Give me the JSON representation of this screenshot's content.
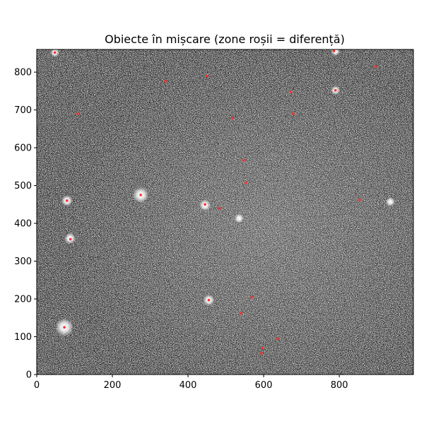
{
  "chart_data": {
    "type": "image",
    "title": "Obiecte în mișcare (zone roșii = diferență)",
    "xlabel": "",
    "ylabel": "",
    "xlim": [
      0,
      996
    ],
    "ylim": [
      0,
      860
    ],
    "x_ticks": [
      "0",
      "200",
      "400",
      "600",
      "800"
    ],
    "y_ticks": [
      "0",
      "100",
      "200",
      "300",
      "400",
      "500",
      "600",
      "700",
      "800"
    ],
    "x_tick_values": [
      0,
      200,
      400,
      600,
      800
    ],
    "y_tick_values": [
      0,
      100,
      200,
      300,
      400,
      500,
      600,
      700,
      800
    ],
    "background": "grayscale star field",
    "colors": {
      "highlight": "#ff3030",
      "axes": "#000000",
      "image_dark": "#3a3a3a"
    },
    "bright_stars": [
      {
        "x": 275,
        "y": 475,
        "r": 7
      },
      {
        "x": 73,
        "y": 125,
        "r": 8
      },
      {
        "x": 88,
        "y": 360,
        "r": 5
      },
      {
        "x": 80,
        "y": 460,
        "r": 5
      },
      {
        "x": 455,
        "y": 197,
        "r": 5
      },
      {
        "x": 445,
        "y": 448,
        "r": 5
      },
      {
        "x": 535,
        "y": 413,
        "r": 4
      },
      {
        "x": 790,
        "y": 752,
        "r": 4
      },
      {
        "x": 790,
        "y": 855,
        "r": 4
      },
      {
        "x": 48,
        "y": 852,
        "r": 4
      },
      {
        "x": 935,
        "y": 457,
        "r": 4
      }
    ],
    "red_markers": [
      {
        "x": 275,
        "y": 475
      },
      {
        "x": 73,
        "y": 125
      },
      {
        "x": 89,
        "y": 358
      },
      {
        "x": 80,
        "y": 460
      },
      {
        "x": 455,
        "y": 197
      },
      {
        "x": 445,
        "y": 450
      },
      {
        "x": 48,
        "y": 852
      },
      {
        "x": 786,
        "y": 856
      },
      {
        "x": 790,
        "y": 752
      },
      {
        "x": 853,
        "y": 462
      },
      {
        "x": 672,
        "y": 748
      },
      {
        "x": 678,
        "y": 690
      },
      {
        "x": 518,
        "y": 678
      },
      {
        "x": 340,
        "y": 776
      },
      {
        "x": 450,
        "y": 790
      },
      {
        "x": 568,
        "y": 204
      },
      {
        "x": 637,
        "y": 95
      },
      {
        "x": 597,
        "y": 70
      },
      {
        "x": 594,
        "y": 56
      },
      {
        "x": 540,
        "y": 162
      },
      {
        "x": 896,
        "y": 815
      },
      {
        "x": 108,
        "y": 690
      },
      {
        "x": 547,
        "y": 567
      },
      {
        "x": 553,
        "y": 507
      },
      {
        "x": 483,
        "y": 440
      }
    ]
  }
}
